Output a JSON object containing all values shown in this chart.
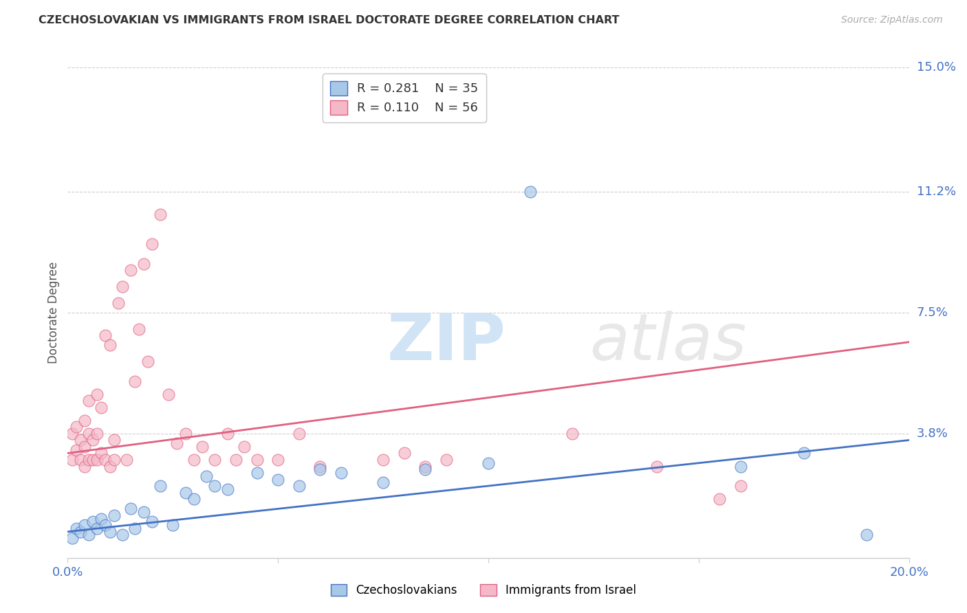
{
  "title": "CZECHOSLOVAKIAN VS IMMIGRANTS FROM ISRAEL DOCTORATE DEGREE CORRELATION CHART",
  "source": "Source: ZipAtlas.com",
  "ylabel": "Doctorate Degree",
  "xlim": [
    0.0,
    0.2
  ],
  "ylim": [
    0.0,
    0.15
  ],
  "ytick_labels_right": [
    "15.0%",
    "11.2%",
    "7.5%",
    "3.8%"
  ],
  "ytick_vals_right": [
    0.15,
    0.112,
    0.075,
    0.038
  ],
  "legend_r_blue": "R = 0.281",
  "legend_n_blue": "N = 35",
  "legend_r_pink": "R = 0.110",
  "legend_n_pink": "N = 56",
  "legend_label_blue": "Czechoslovakians",
  "legend_label_pink": "Immigrants from Israel",
  "color_blue": "#a8c8e8",
  "color_pink": "#f4b8c8",
  "color_line_blue": "#4472c4",
  "color_line_pink": "#e06080",
  "blue_line_x0": 0.0,
  "blue_line_y0": 0.008,
  "blue_line_x1": 0.2,
  "blue_line_y1": 0.036,
  "pink_line_x0": 0.0,
  "pink_line_y0": 0.032,
  "pink_line_x1": 0.2,
  "pink_line_y1": 0.066,
  "blue_x": [
    0.001,
    0.002,
    0.003,
    0.004,
    0.005,
    0.006,
    0.007,
    0.008,
    0.009,
    0.01,
    0.011,
    0.013,
    0.015,
    0.016,
    0.018,
    0.02,
    0.022,
    0.025,
    0.028,
    0.03,
    0.033,
    0.035,
    0.038,
    0.045,
    0.05,
    0.055,
    0.06,
    0.065,
    0.075,
    0.085,
    0.1,
    0.11,
    0.16,
    0.175,
    0.19
  ],
  "blue_y": [
    0.006,
    0.009,
    0.008,
    0.01,
    0.007,
    0.011,
    0.009,
    0.012,
    0.01,
    0.008,
    0.013,
    0.007,
    0.015,
    0.009,
    0.014,
    0.011,
    0.022,
    0.01,
    0.02,
    0.018,
    0.025,
    0.022,
    0.021,
    0.026,
    0.024,
    0.022,
    0.027,
    0.026,
    0.023,
    0.027,
    0.029,
    0.112,
    0.028,
    0.032,
    0.007
  ],
  "pink_x": [
    0.001,
    0.001,
    0.002,
    0.002,
    0.003,
    0.003,
    0.004,
    0.004,
    0.004,
    0.005,
    0.005,
    0.005,
    0.006,
    0.006,
    0.007,
    0.007,
    0.007,
    0.008,
    0.008,
    0.009,
    0.009,
    0.01,
    0.01,
    0.011,
    0.011,
    0.012,
    0.013,
    0.014,
    0.015,
    0.016,
    0.017,
    0.018,
    0.019,
    0.02,
    0.022,
    0.024,
    0.026,
    0.028,
    0.03,
    0.032,
    0.035,
    0.038,
    0.04,
    0.042,
    0.045,
    0.05,
    0.055,
    0.06,
    0.075,
    0.08,
    0.085,
    0.09,
    0.12,
    0.14,
    0.155,
    0.16
  ],
  "pink_y": [
    0.03,
    0.038,
    0.033,
    0.04,
    0.03,
    0.036,
    0.028,
    0.034,
    0.042,
    0.03,
    0.038,
    0.048,
    0.03,
    0.036,
    0.03,
    0.038,
    0.05,
    0.032,
    0.046,
    0.03,
    0.068,
    0.028,
    0.065,
    0.03,
    0.036,
    0.078,
    0.083,
    0.03,
    0.088,
    0.054,
    0.07,
    0.09,
    0.06,
    0.096,
    0.105,
    0.05,
    0.035,
    0.038,
    0.03,
    0.034,
    0.03,
    0.038,
    0.03,
    0.034,
    0.03,
    0.03,
    0.038,
    0.028,
    0.03,
    0.032,
    0.028,
    0.03,
    0.038,
    0.028,
    0.018,
    0.022
  ]
}
